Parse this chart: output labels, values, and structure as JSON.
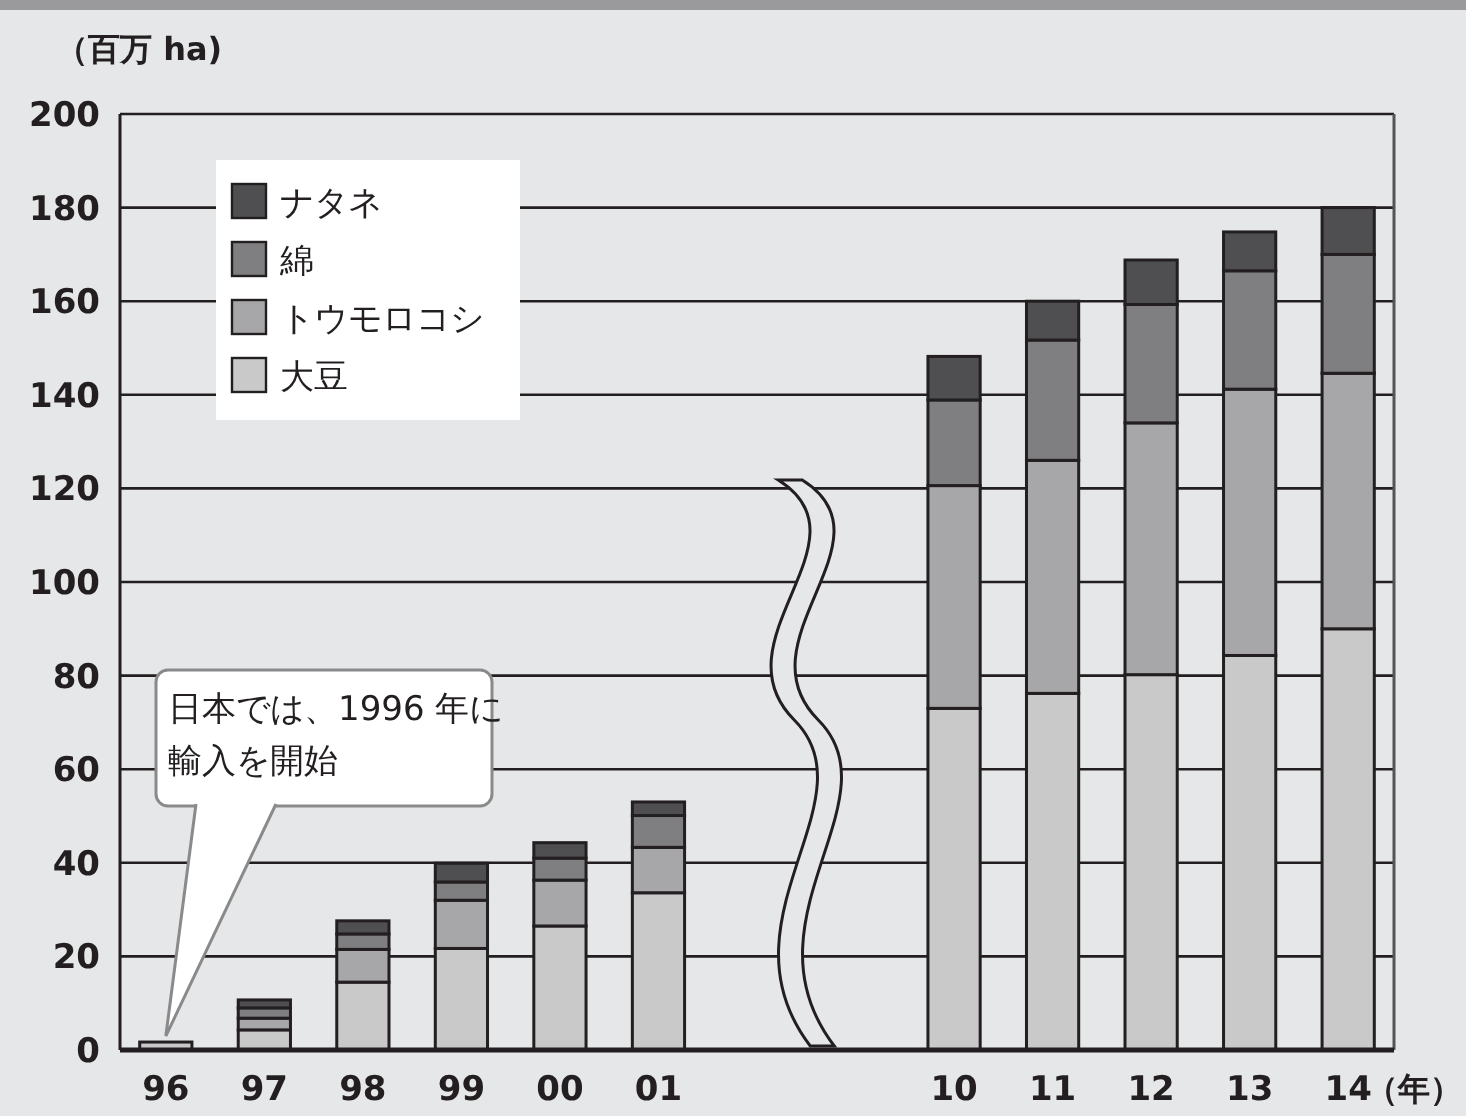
{
  "chart_data": {
    "type": "bar",
    "stacked": true,
    "ylabel": "（百万 ha)",
    "xlabel": "（年）",
    "categories": [
      "96",
      "97",
      "98",
      "99",
      "00",
      "01",
      null,
      null,
      "10",
      "11",
      "12",
      "13",
      "14"
    ],
    "series": [
      {
        "name": "大豆",
        "color": "#c9c9c9",
        "values": [
          1.7,
          4.3,
          14.5,
          21.7,
          26.5,
          33.6,
          null,
          null,
          73,
          76.2,
          80.2,
          84.3,
          90
        ]
      },
      {
        "name": "トウモロコシ",
        "color": "#a7a7a9",
        "values": [
          0,
          2.5,
          7,
          10.3,
          9.8,
          9.7,
          null,
          null,
          47.6,
          49.8,
          53.8,
          56.9,
          54.6
        ]
      },
      {
        "name": "綿",
        "color": "#7f7f81",
        "values": [
          0,
          2.2,
          3.3,
          3.9,
          4.7,
          6.8,
          null,
          null,
          18.3,
          25.7,
          25.3,
          25.3,
          25.4
        ]
      },
      {
        "name": "ナタネ",
        "color": "#4f4f51",
        "values": [
          0,
          1.7,
          2.8,
          4,
          3.3,
          2.9,
          null,
          null,
          9.3,
          8.3,
          9.5,
          8.3,
          10
        ]
      }
    ],
    "ylim": [
      0,
      200
    ],
    "yticks": [
      0,
      20,
      40,
      60,
      80,
      100,
      120,
      140,
      160,
      180,
      200
    ],
    "grid": "y",
    "legend": "top left",
    "annotations": [
      {
        "text": "日本では、1996 年に輸入を開始",
        "x": "96",
        "y": 1.7
      }
    ]
  }
}
